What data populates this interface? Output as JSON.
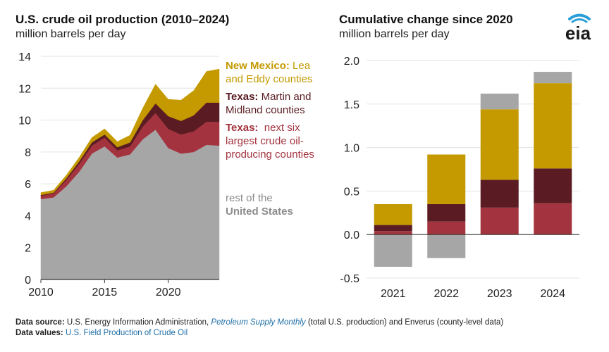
{
  "left_chart": {
    "title": "U.S. crude oil production (2010–2024)",
    "subtitle": "million barrels per day"
  },
  "right_chart": {
    "title": "Cumulative change since 2020",
    "subtitle": "million barrels per day"
  },
  "logo": {
    "text": "eia",
    "icon": "eia-logo-icon"
  },
  "legend": {
    "nm_bold": "New Mexico:",
    "nm_rest1": " Lea",
    "nm_rest2": "and Eddy counties",
    "tx1_bold": "Texas:",
    "tx1_rest1": " Martin and",
    "tx1_rest2": "Midland counties",
    "tx2_bold": "Texas:",
    "tx2_rest1": "  next six",
    "tx2_rest2": "largest crude oil-",
    "tx2_rest3": "producing counties",
    "rest_line1": "rest of the",
    "rest_line2": "United States"
  },
  "footer": {
    "source_label": "Data source:",
    "source_text1": " U.S. Energy Information Administration, ",
    "source_link": "Petroleum Supply Monthly",
    "source_text2": " (total U.S. production) and Enverus (county-level data)",
    "values_label": "Data values:",
    "values_link": " U.S. Field Production of Crude Oil"
  },
  "colors": {
    "rest": "#a6a6a6",
    "tx_six": "#a3343f",
    "tx_martin": "#5a1c22",
    "nm": "#c49a00"
  },
  "chart_data": [
    {
      "type": "area",
      "stacked": true,
      "title": "U.S. crude oil production (2010–2024)",
      "ylabel": "million barrels per day",
      "x": [
        2010,
        2011,
        2012,
        2013,
        2014,
        2015,
        2016,
        2017,
        2018,
        2019,
        2020,
        2021,
        2022,
        2023,
        2024
      ],
      "xticks": [
        2010,
        2015,
        2020
      ],
      "xlim": [
        2010,
        2024
      ],
      "ylim": [
        0,
        14
      ],
      "yticks": [
        0,
        2,
        4,
        6,
        8,
        10,
        12,
        14
      ],
      "series": [
        {
          "name": "rest of the United States",
          "key": "rest",
          "values": [
            5.05,
            5.15,
            5.85,
            6.75,
            7.9,
            8.35,
            7.65,
            7.85,
            8.8,
            9.4,
            8.25,
            7.9,
            8.0,
            8.45,
            8.4
          ]
        },
        {
          "name": "Texas: next six largest crude oil-producing counties",
          "key": "tx_six",
          "values": [
            0.2,
            0.25,
            0.4,
            0.5,
            0.5,
            0.55,
            0.45,
            0.5,
            0.8,
            1.05,
            1.2,
            1.2,
            1.3,
            1.45,
            1.5
          ]
        },
        {
          "name": "Texas: Martin and Midland counties",
          "key": "tx_martin",
          "values": [
            0.05,
            0.05,
            0.1,
            0.15,
            0.2,
            0.2,
            0.2,
            0.25,
            0.4,
            0.6,
            0.8,
            0.85,
            1.0,
            1.2,
            1.2
          ]
        },
        {
          "name": "New Mexico: Lea and Eddy counties",
          "key": "nm",
          "values": [
            0.15,
            0.15,
            0.2,
            0.25,
            0.3,
            0.35,
            0.35,
            0.45,
            0.75,
            1.2,
            1.05,
            1.3,
            1.55,
            1.95,
            2.1
          ]
        }
      ]
    },
    {
      "type": "bar",
      "stacked": true,
      "title": "Cumulative change since 2020",
      "ylabel": "million barrels per day",
      "categories": [
        "2021",
        "2022",
        "2023",
        "2024"
      ],
      "ylim": [
        -0.5,
        2.0
      ],
      "yticks": [
        "2.0",
        "1.5",
        "1.0",
        "0.5",
        "0.0",
        "-0.5"
      ],
      "series": [
        {
          "name": "Texas: next six largest crude oil-producing counties",
          "key": "tx_six",
          "values": [
            0.04,
            0.15,
            0.31,
            0.36
          ]
        },
        {
          "name": "Texas: Martin and Midland counties",
          "key": "tx_martin",
          "values": [
            0.07,
            0.2,
            0.32,
            0.4
          ]
        },
        {
          "name": "New Mexico: Lea and Eddy counties",
          "key": "nm",
          "values": [
            0.24,
            0.57,
            0.81,
            0.98
          ]
        },
        {
          "name": "rest of the United States",
          "key": "rest",
          "values": [
            -0.37,
            -0.27,
            0.18,
            0.13
          ]
        }
      ]
    }
  ]
}
